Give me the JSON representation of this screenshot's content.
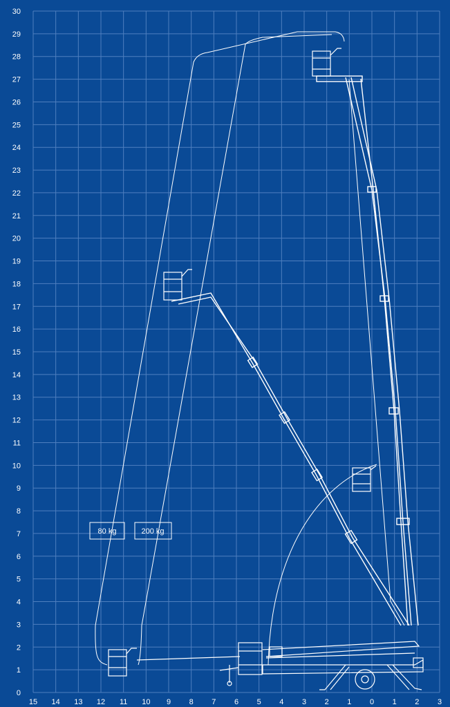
{
  "colors": {
    "background": "#0a4a96",
    "grid": "#4f7fbf",
    "lines": "#ffffff"
  },
  "diagram": {
    "type": "working-range-chart",
    "x_axis": {
      "ticks": [
        "15",
        "14",
        "13",
        "12",
        "11",
        "10",
        "9",
        "8",
        "7",
        "6",
        "5",
        "4",
        "3",
        "2",
        "1",
        "0",
        "1",
        "2",
        "3"
      ]
    },
    "y_axis": {
      "min": 0,
      "max": 30,
      "step": 1
    },
    "load_labels": [
      {
        "text": "80 kg"
      },
      {
        "text": "200 kg"
      }
    ]
  }
}
